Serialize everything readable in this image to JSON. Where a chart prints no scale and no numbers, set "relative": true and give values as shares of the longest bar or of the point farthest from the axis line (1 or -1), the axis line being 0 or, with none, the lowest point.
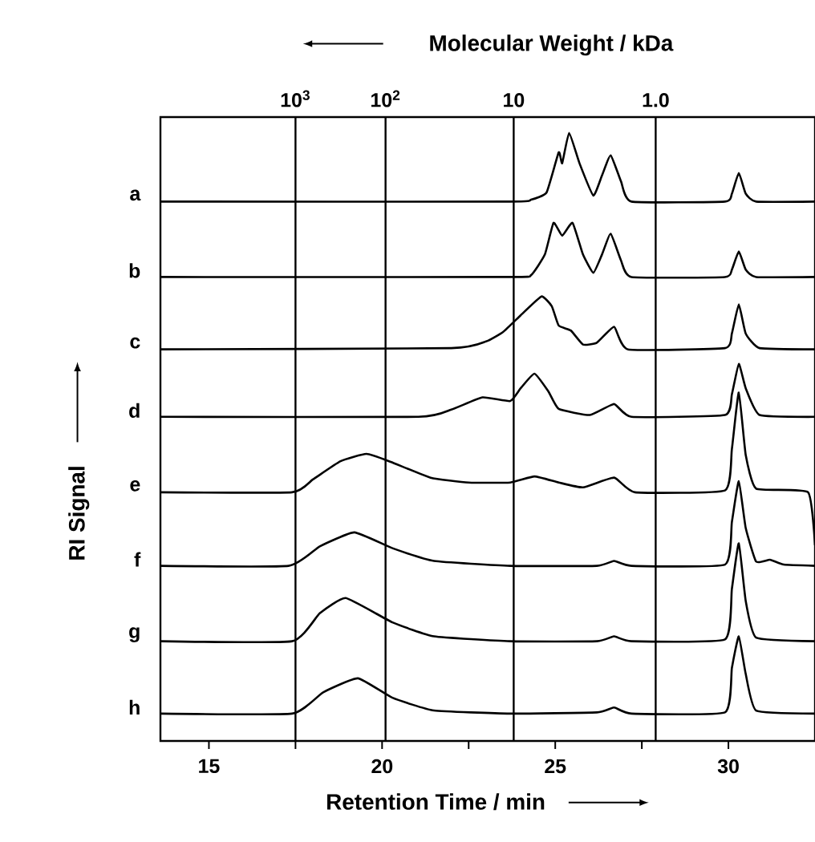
{
  "chart_data": {
    "type": "line",
    "relative": true,
    "title": "Molecular Weight / kDa",
    "annotations": [
      "10$^{3}$",
      "10$^{2}$",
      "10",
      "1.0"
    ],
    "xlabel": "Retention Time / min",
    "ylabel": "RI Signal",
    "xlim": [
      13.6,
      32.5
    ],
    "xticks": [
      15,
      {
        "value": 17.5,
        "label": null
      },
      20,
      {
        "value": 22.5,
        "label": null
      },
      25,
      {
        "value": 27.5,
        "label": null
      },
      30
    ],
    "ref_lines": [
      {
        "axis": "x",
        "value": 17.5,
        "color": "#000000"
      },
      {
        "axis": "x",
        "value": 20.1,
        "color": "#000000"
      },
      {
        "axis": "x",
        "value": 23.8,
        "color": "#000000"
      },
      {
        "axis": "x",
        "value": 27.9,
        "color": "#000000"
      }
    ],
    "series": [
      {
        "name": "a",
        "color": "#000000",
        "x": [
          13.6,
          23.7,
          24.3,
          24.75,
          25.1,
          25.2,
          25.4,
          25.7,
          26.1,
          26.35,
          26.6,
          26.9,
          27.2,
          29.9,
          30.1,
          30.3,
          30.5,
          30.8,
          32.5
        ],
        "values": [
          0.887,
          0.887,
          0.89,
          0.902,
          0.968,
          0.95,
          1.0,
          0.95,
          0.897,
          0.93,
          0.963,
          0.92,
          0.887,
          0.887,
          0.9,
          0.934,
          0.9,
          0.887,
          0.887
        ]
      },
      {
        "name": "b",
        "color": "#000000",
        "x": [
          13.6,
          23.7,
          24.3,
          24.7,
          24.95,
          25.2,
          25.5,
          25.8,
          26.1,
          26.35,
          26.6,
          26.9,
          27.2,
          29.9,
          30.1,
          30.3,
          30.5,
          30.8,
          32.5
        ],
        "values": [
          0.763,
          0.763,
          0.766,
          0.8,
          0.852,
          0.831,
          0.852,
          0.8,
          0.77,
          0.8,
          0.834,
          0.79,
          0.763,
          0.763,
          0.775,
          0.805,
          0.775,
          0.763,
          0.763
        ]
      },
      {
        "name": "c",
        "color": "#000000",
        "x": [
          13.6,
          22.0,
          23.0,
          23.5,
          24.0,
          24.6,
          24.9,
          25.1,
          25.45,
          25.8,
          26.2,
          26.7,
          27.1,
          29.9,
          30.1,
          30.3,
          30.5,
          30.9,
          32.5
        ],
        "values": [
          0.644,
          0.646,
          0.657,
          0.673,
          0.7,
          0.731,
          0.715,
          0.683,
          0.675,
          0.652,
          0.655,
          0.681,
          0.644,
          0.646,
          0.67,
          0.718,
          0.67,
          0.646,
          0.644
        ]
      },
      {
        "name": "d",
        "color": "#000000",
        "x": [
          13.6,
          21.05,
          22.0,
          22.9,
          23.7,
          24.0,
          24.4,
          24.8,
          25.1,
          26.0,
          26.7,
          27.2,
          29.9,
          30.1,
          30.3,
          30.5,
          30.9,
          32.5
        ],
        "values": [
          0.533,
          0.533,
          0.545,
          0.565,
          0.559,
          0.58,
          0.604,
          0.575,
          0.546,
          0.536,
          0.554,
          0.533,
          0.536,
          0.57,
          0.62,
          0.58,
          0.536,
          0.533
        ]
      },
      {
        "name": "e",
        "color": "#000000",
        "x": [
          13.6,
          17.4,
          18.0,
          18.8,
          19.55,
          20.25,
          21.4,
          22.5,
          23.7,
          24.4,
          25.1,
          25.8,
          26.7,
          27.3,
          29.9,
          30.1,
          30.3,
          30.5,
          30.8,
          32.3,
          32.5
        ],
        "values": [
          0.409,
          0.409,
          0.43,
          0.46,
          0.472,
          0.459,
          0.433,
          0.425,
          0.425,
          0.435,
          0.425,
          0.417,
          0.433,
          0.409,
          0.412,
          0.48,
          0.573,
          0.47,
          0.415,
          0.409,
          0.322
        ]
      },
      {
        "name": "f",
        "color": "#000000",
        "x": [
          13.6,
          17.3,
          18.2,
          19.2,
          20.3,
          21.5,
          23.7,
          26.2,
          26.7,
          27.2,
          29.9,
          30.1,
          30.3,
          30.5,
          30.8,
          31.2,
          31.6,
          32.5
        ],
        "values": [
          0.288,
          0.288,
          0.32,
          0.343,
          0.317,
          0.296,
          0.288,
          0.288,
          0.296,
          0.288,
          0.29,
          0.36,
          0.427,
          0.35,
          0.295,
          0.298,
          0.29,
          0.288
        ]
      },
      {
        "name": "g",
        "color": "#000000",
        "x": [
          13.6,
          17.4,
          18.2,
          18.95,
          20.3,
          21.5,
          23.7,
          26.2,
          26.7,
          27.2,
          29.9,
          30.1,
          30.3,
          30.5,
          30.8,
          32.5
        ],
        "values": [
          0.164,
          0.164,
          0.21,
          0.235,
          0.195,
          0.172,
          0.164,
          0.164,
          0.172,
          0.164,
          0.167,
          0.25,
          0.325,
          0.23,
          0.17,
          0.164
        ]
      },
      {
        "name": "h",
        "color": "#000000",
        "x": [
          13.6,
          17.4,
          18.3,
          19.3,
          20.3,
          21.5,
          23.7,
          26.2,
          26.7,
          27.2,
          29.9,
          30.1,
          30.3,
          30.5,
          30.8,
          32.5
        ],
        "values": [
          0.045,
          0.045,
          0.08,
          0.103,
          0.071,
          0.05,
          0.045,
          0.047,
          0.055,
          0.045,
          0.047,
          0.12,
          0.172,
          0.11,
          0.05,
          0.045
        ]
      }
    ]
  }
}
